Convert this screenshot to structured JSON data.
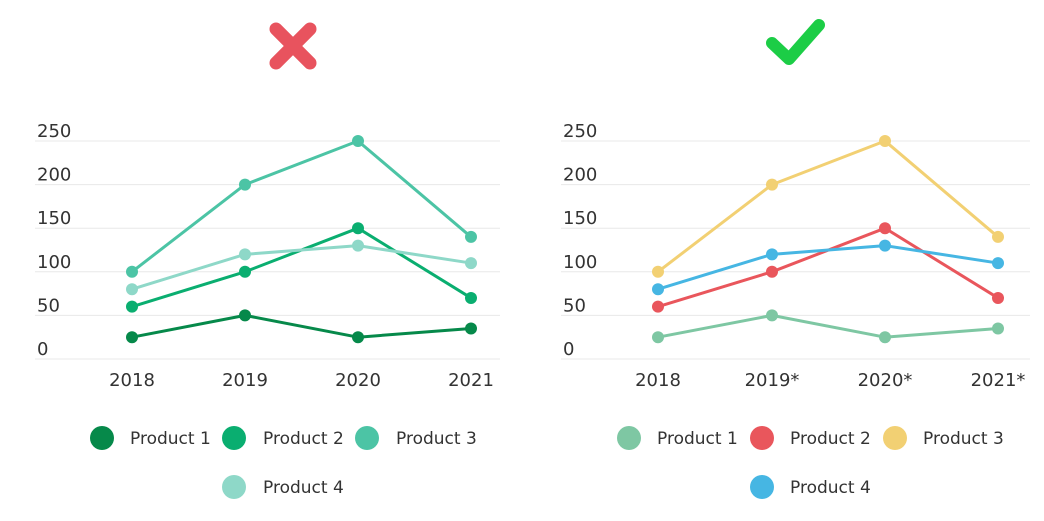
{
  "colors": {
    "bad_mark": "#e8535e",
    "good_mark": "#1ccd46",
    "grid": "#e8e8e8",
    "text": "#333333"
  },
  "panels": [
    {
      "id": "bad",
      "verdict_icon": "cross-icon",
      "verdict_color": "#e8535e",
      "chart_data": {
        "type": "line",
        "x": [
          "2018",
          "2019",
          "2020",
          "2021"
        ],
        "y_ticks": [
          250,
          200,
          150,
          100,
          50,
          0
        ],
        "ylim": [
          0,
          250
        ],
        "grid": true,
        "legend": "bottom",
        "series": [
          {
            "name": "Product 1",
            "color": "#06894a",
            "values": [
              25,
              50,
              25,
              35
            ]
          },
          {
            "name": "Product 2",
            "color": "#0aae70",
            "values": [
              60,
              100,
              150,
              70
            ]
          },
          {
            "name": "Product 3",
            "color": "#4cc4a5",
            "values": [
              100,
              200,
              250,
              140
            ]
          },
          {
            "name": "Product 4",
            "color": "#8ed8c8",
            "values": [
              80,
              120,
              130,
              110
            ]
          }
        ]
      }
    },
    {
      "id": "good",
      "verdict_icon": "check-icon",
      "verdict_color": "#1ccd46",
      "chart_data": {
        "type": "line",
        "x": [
          "2018",
          "2019*",
          "2020*",
          "2021*"
        ],
        "y_ticks": [
          250,
          200,
          150,
          100,
          50,
          0
        ],
        "ylim": [
          0,
          250
        ],
        "grid": true,
        "legend": "bottom",
        "series": [
          {
            "name": "Product 1",
            "color": "#7ec7a3",
            "values": [
              25,
              50,
              25,
              35
            ]
          },
          {
            "name": "Product 2",
            "color": "#e9565c",
            "values": [
              60,
              100,
              150,
              70
            ]
          },
          {
            "name": "Product 3",
            "color": "#f2d073",
            "values": [
              100,
              200,
              250,
              140
            ]
          },
          {
            "name": "Product 4",
            "color": "#46b6e3",
            "values": [
              80,
              120,
              130,
              110
            ]
          }
        ]
      }
    }
  ]
}
